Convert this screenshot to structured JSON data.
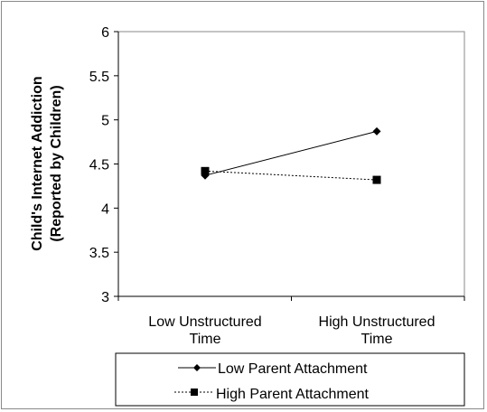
{
  "chart_data": {
    "type": "line",
    "categories": [
      [
        "Low Unstructured",
        "Time"
      ],
      [
        "High Unstructured",
        "Time"
      ]
    ],
    "ylabel": [
      "Child's Internet Addiction",
      "(Reported by Children)"
    ],
    "ylim": [
      3,
      6
    ],
    "yticks": [
      "3",
      "3.5",
      "4",
      "4.5",
      "5",
      "5.5",
      "6"
    ],
    "grid": false,
    "legend_placement": "bottom",
    "series": [
      {
        "name": "Low Parent Attachment",
        "values": [
          4.37,
          4.87
        ],
        "marker": "diamond",
        "line": "solid",
        "color": "#000000"
      },
      {
        "name": "High Parent Attachment",
        "values": [
          4.42,
          4.32
        ],
        "marker": "square",
        "line": "dashed",
        "color": "#000000"
      }
    ]
  }
}
